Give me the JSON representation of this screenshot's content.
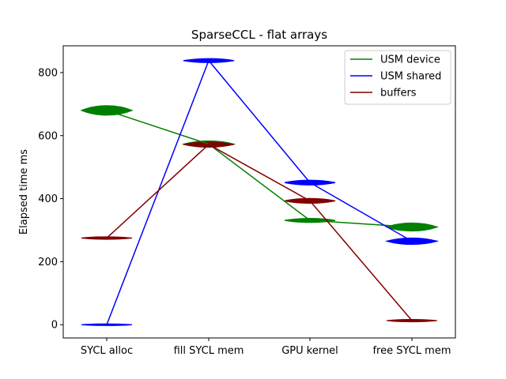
{
  "chart_data": {
    "type": "line",
    "title": "SparseCCL - flat arrays",
    "xlabel": "",
    "ylabel": "Elapsed time ms",
    "categories": [
      "SYCL alloc",
      "fill SYCL mem",
      "GPU kernel",
      "free SYCL mem"
    ],
    "ylim": [
      -42,
      885
    ],
    "yticks": [
      0,
      200,
      400,
      600,
      800
    ],
    "grid": false,
    "legend_position": "top-right",
    "series": [
      {
        "name": "USM device",
        "color": "#008000",
        "values": [
          680,
          573,
          331,
          310
        ]
      },
      {
        "name": "USM shared",
        "color": "#0000ff",
        "values": [
          0,
          838,
          451,
          265
        ]
      },
      {
        "name": "buffers",
        "color": "#800000",
        "values": [
          275,
          572,
          393,
          13
        ]
      }
    ]
  }
}
